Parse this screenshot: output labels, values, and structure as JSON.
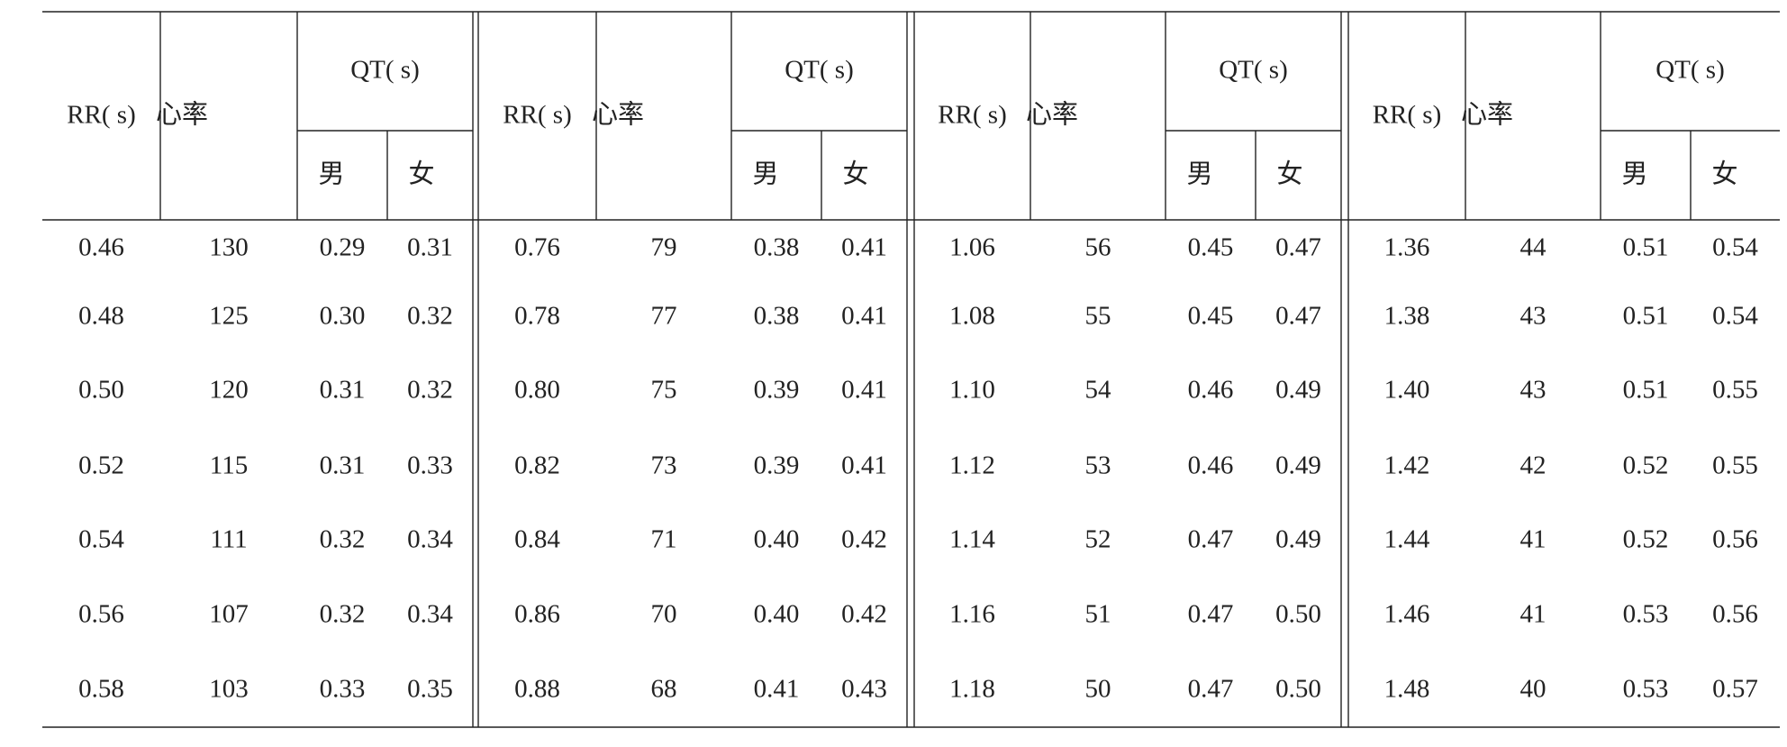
{
  "table": {
    "header": {
      "rr": "RR( s)",
      "hr": "心率",
      "qt": "QT( s)",
      "male": "男",
      "female": "女"
    },
    "rows": [
      [
        "0.46",
        "130",
        "0.29",
        "0.31",
        "0.76",
        "79",
        "0.38",
        "0.41",
        "1.06",
        "56",
        "0.45",
        "0.47",
        "1.36",
        "44",
        "0.51",
        "0.54"
      ],
      [
        "0.48",
        "125",
        "0.30",
        "0.32",
        "0.78",
        "77",
        "0.38",
        "0.41",
        "1.08",
        "55",
        "0.45",
        "0.47",
        "1.38",
        "43",
        "0.51",
        "0.54"
      ],
      [
        "0.50",
        "120",
        "0.31",
        "0.32",
        "0.80",
        "75",
        "0.39",
        "0.41",
        "1.10",
        "54",
        "0.46",
        "0.49",
        "1.40",
        "43",
        "0.51",
        "0.55"
      ],
      [
        "0.52",
        "115",
        "0.31",
        "0.33",
        "0.82",
        "73",
        "0.39",
        "0.41",
        "1.12",
        "53",
        "0.46",
        "0.49",
        "1.42",
        "42",
        "0.52",
        "0.55"
      ],
      [
        "0.54",
        "111",
        "0.32",
        "0.34",
        "0.84",
        "71",
        "0.40",
        "0.42",
        "1.14",
        "52",
        "0.47",
        "0.49",
        "1.44",
        "41",
        "0.52",
        "0.56"
      ],
      [
        "0.56",
        "107",
        "0.32",
        "0.34",
        "0.86",
        "70",
        "0.40",
        "0.42",
        "1.16",
        "51",
        "0.47",
        "0.50",
        "1.46",
        "41",
        "0.53",
        "0.56"
      ],
      [
        "0.58",
        "103",
        "0.33",
        "0.35",
        "0.88",
        "68",
        "0.41",
        "0.43",
        "1.18",
        "50",
        "0.47",
        "0.50",
        "1.48",
        "40",
        "0.53",
        "0.57"
      ]
    ]
  }
}
